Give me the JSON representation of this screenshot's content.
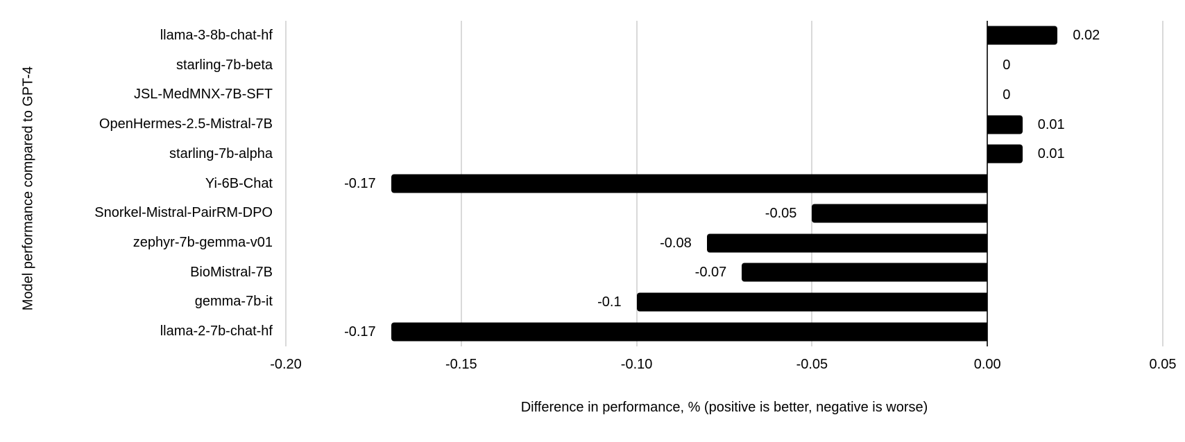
{
  "chart_data": {
    "type": "bar",
    "orientation": "horizontal",
    "title": "",
    "xlabel": "Difference in performance, % (positive is better, negative is worse)",
    "ylabel": "Model performance compared to GPT-4",
    "categories": [
      "llama-3-8b-chat-hf",
      "starling-7b-beta",
      "JSL-MedMNX-7B-SFT",
      "OpenHermes-2.5-Mistral-7B",
      "starling-7b-alpha",
      "Yi-6B-Chat",
      "Snorkel-Mistral-PairRM-DPO",
      "zephyr-7b-gemma-v01",
      "BioMistral-7B",
      "gemma-7b-it",
      "llama-2-7b-chat-hf"
    ],
    "values": [
      0.02,
      0,
      0,
      0.01,
      0.01,
      -0.17,
      -0.05,
      -0.08,
      -0.07,
      -0.1,
      -0.17
    ],
    "value_labels": [
      "0.02",
      "0",
      "0",
      "0.01",
      "0.01",
      "-0.17",
      "-0.05",
      "-0.08",
      "-0.07",
      "-0.1",
      "-0.17"
    ],
    "xlim": [
      -0.2,
      0.05
    ],
    "xticks": [
      -0.2,
      -0.15,
      -0.1,
      -0.05,
      0,
      0.05
    ],
    "xtick_labels": [
      "-0.20",
      "-0.15",
      "-0.10",
      "-0.05",
      "0.00",
      "0.05"
    ],
    "grid": "vertical-only",
    "legend": "none",
    "colors": {
      "bar": "#000000",
      "gridline": "#d9d9d9",
      "zero_axis": "#333333",
      "text": "#000000",
      "background": "#ffffff"
    }
  }
}
